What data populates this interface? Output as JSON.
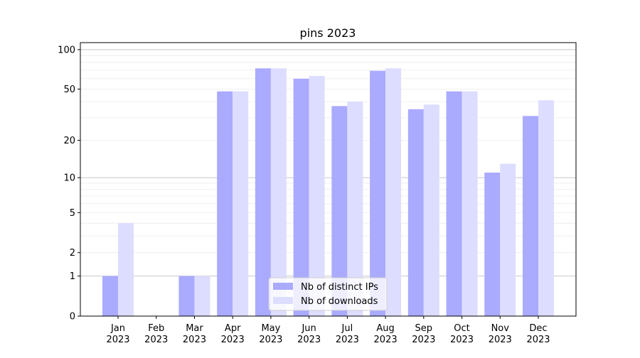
{
  "chart_data": {
    "type": "bar",
    "title": "pins 2023",
    "xlabel": "",
    "ylabel": "",
    "yscale": "log10(1+x)",
    "ylim": [
      0,
      113
    ],
    "yticks": [
      0,
      1,
      2,
      5,
      10,
      20,
      50,
      100
    ],
    "categories": [
      "Jan\n2023",
      "Feb\n2023",
      "Mar\n2023",
      "Apr\n2023",
      "May\n2023",
      "Jun\n2023",
      "Jul\n2023",
      "Aug\n2023",
      "Sep\n2023",
      "Oct\n2023",
      "Nov\n2023",
      "Dec\n2023"
    ],
    "series": [
      {
        "name": "Nb of distinct IPs",
        "color": "#aaaaff",
        "values": [
          1,
          0,
          1,
          48,
          72,
          60,
          37,
          69,
          35,
          48,
          11,
          31
        ]
      },
      {
        "name": "Nb of downloads",
        "color": "#ddddff",
        "values": [
          4,
          0,
          1,
          48,
          72,
          63,
          40,
          72,
          38,
          48,
          13,
          41
        ]
      }
    ],
    "grid": true,
    "legend": "lower-center"
  }
}
